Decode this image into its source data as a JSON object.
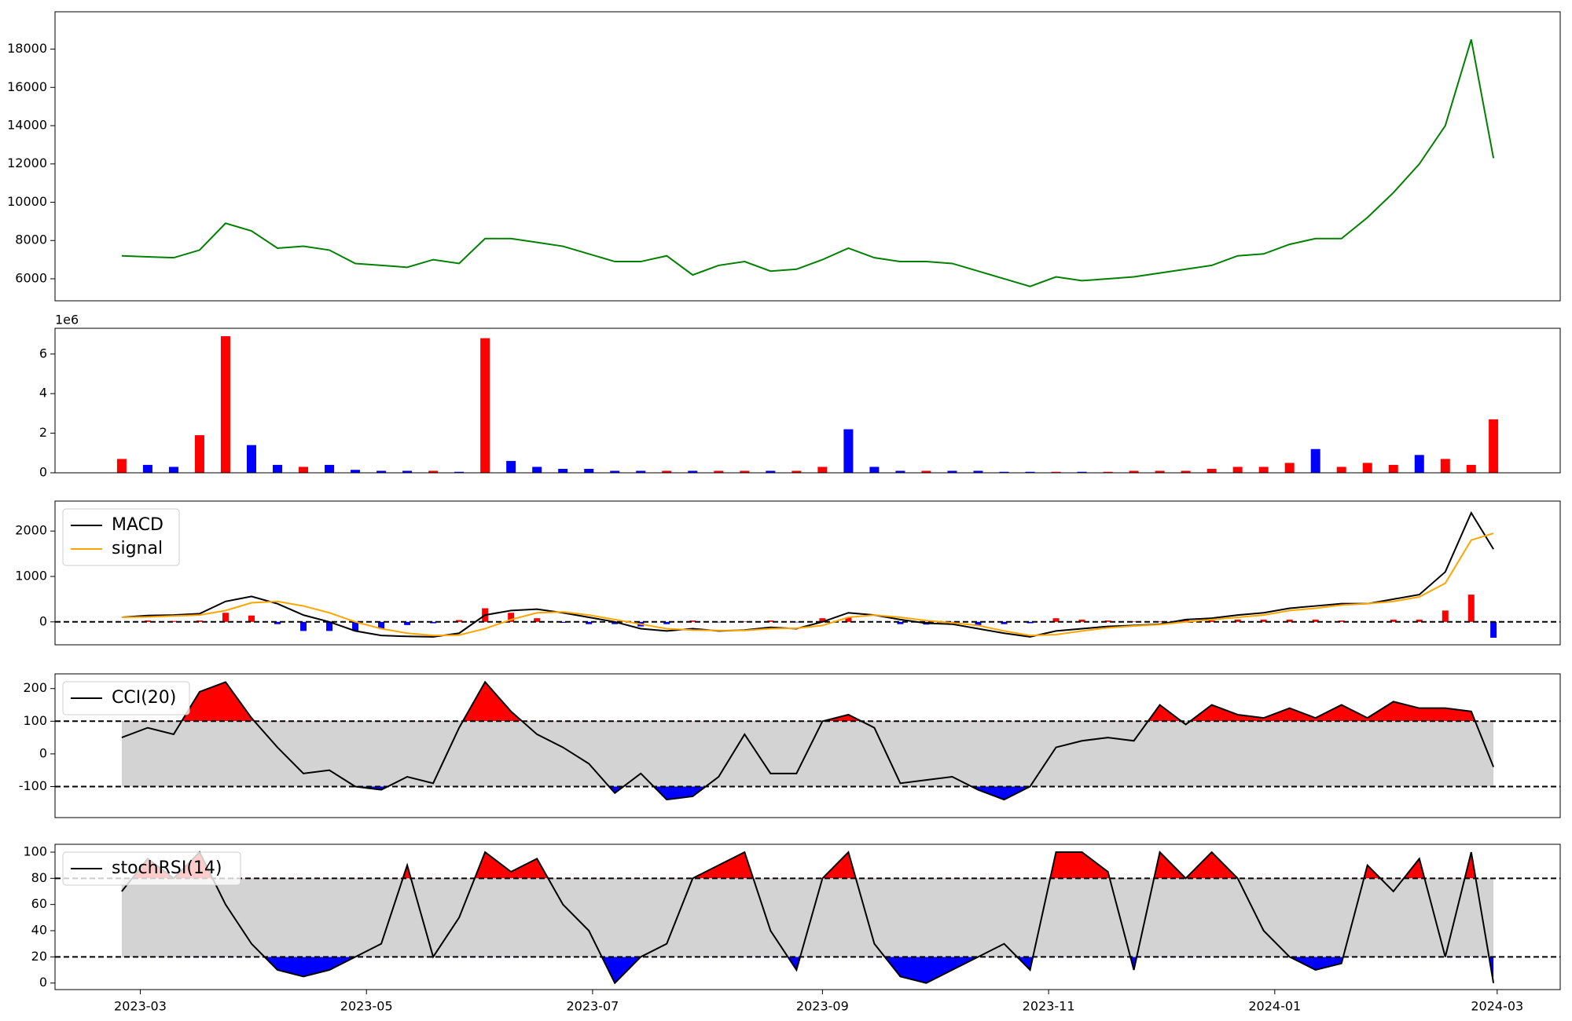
{
  "chart_data": [
    {
      "type": "line",
      "x": [
        "2023-02-24",
        "2023-03-03",
        "2023-03-10",
        "2023-03-17",
        "2023-03-24",
        "2023-03-31",
        "2023-04-07",
        "2023-04-14",
        "2023-04-21",
        "2023-04-28",
        "2023-05-05",
        "2023-05-12",
        "2023-05-19",
        "2023-05-26",
        "2023-06-02",
        "2023-06-09",
        "2023-06-16",
        "2023-06-23",
        "2023-06-30",
        "2023-07-07",
        "2023-07-14",
        "2023-07-21",
        "2023-07-28",
        "2023-08-04",
        "2023-08-11",
        "2023-08-18",
        "2023-08-25",
        "2023-09-01",
        "2023-09-08",
        "2023-09-15",
        "2023-09-22",
        "2023-09-29",
        "2023-10-06",
        "2023-10-13",
        "2023-10-20",
        "2023-10-27",
        "2023-11-03",
        "2023-11-10",
        "2023-11-17",
        "2023-11-24",
        "2023-12-01",
        "2023-12-08",
        "2023-12-15",
        "2023-12-22",
        "2023-12-29",
        "2024-01-05",
        "2024-01-12",
        "2024-01-19",
        "2024-01-26",
        "2024-02-02",
        "2024-02-09",
        "2024-02-16",
        "2024-02-23",
        "2024-02-29"
      ],
      "xlim": [
        "2023-02-06",
        "2024-03-18"
      ],
      "series": [
        {
          "color": "green",
          "values": [
            7200,
            7150,
            7100,
            7500,
            8900,
            8500,
            7600,
            7700,
            7500,
            6800,
            6700,
            6600,
            7000,
            6800,
            8100,
            8100,
            7900,
            7700,
            7300,
            6900,
            6900,
            7200,
            6200,
            6700,
            6900,
            6400,
            6500,
            7000,
            7600,
            7100,
            6900,
            6900,
            6800,
            6400,
            6000,
            5600,
            6100,
            5900,
            6000,
            6100,
            6300,
            6500,
            6700,
            7200,
            7300,
            7800,
            8100,
            8100,
            9200,
            10500,
            12000,
            14000,
            18500,
            12300
          ]
        }
      ],
      "ylim": [
        4850,
        19950
      ],
      "yticks": [
        6000,
        8000,
        10000,
        12000,
        14000,
        16000,
        18000
      ]
    },
    {
      "type": "bar",
      "x": [
        "2023-02-24",
        "2023-03-03",
        "2023-03-10",
        "2023-03-17",
        "2023-03-24",
        "2023-03-31",
        "2023-04-07",
        "2023-04-14",
        "2023-04-21",
        "2023-04-28",
        "2023-05-05",
        "2023-05-12",
        "2023-05-19",
        "2023-05-26",
        "2023-06-02",
        "2023-06-09",
        "2023-06-16",
        "2023-06-23",
        "2023-06-30",
        "2023-07-07",
        "2023-07-14",
        "2023-07-21",
        "2023-07-28",
        "2023-08-04",
        "2023-08-11",
        "2023-08-18",
        "2023-08-25",
        "2023-09-01",
        "2023-09-08",
        "2023-09-15",
        "2023-09-22",
        "2023-09-29",
        "2023-10-06",
        "2023-10-13",
        "2023-10-20",
        "2023-10-27",
        "2023-11-03",
        "2023-11-10",
        "2023-11-17",
        "2023-11-24",
        "2023-12-01",
        "2023-12-08",
        "2023-12-15",
        "2023-12-22",
        "2023-12-29",
        "2024-01-05",
        "2024-01-12",
        "2024-01-19",
        "2024-01-26",
        "2024-02-02",
        "2024-02-09",
        "2024-02-16",
        "2024-02-23",
        "2024-02-29"
      ],
      "xlim": [
        "2023-02-06",
        "2024-03-18"
      ],
      "values": [
        0.7,
        0.4,
        0.3,
        1.9,
        6.9,
        1.4,
        0.4,
        0.3,
        0.4,
        0.15,
        0.1,
        0.1,
        0.1,
        0.05,
        6.8,
        0.6,
        0.3,
        0.2,
        0.2,
        0.1,
        0.1,
        0.1,
        0.1,
        0.1,
        0.1,
        0.1,
        0.1,
        0.3,
        2.2,
        0.3,
        0.1,
        0.1,
        0.1,
        0.1,
        0.05,
        0.05,
        0.05,
        0.05,
        0.05,
        0.1,
        0.1,
        0.1,
        0.2,
        0.3,
        0.3,
        0.5,
        1.2,
        0.3,
        0.5,
        0.4,
        0.9,
        0.7,
        0.4,
        2.7
      ],
      "colors": [
        "red",
        "blue",
        "blue",
        "red",
        "red",
        "blue",
        "blue",
        "red",
        "blue",
        "blue",
        "blue",
        "blue",
        "red",
        "blue",
        "red",
        "blue",
        "blue",
        "blue",
        "blue",
        "blue",
        "blue",
        "red",
        "blue",
        "red",
        "red",
        "blue",
        "red",
        "red",
        "blue",
        "blue",
        "blue",
        "red",
        "blue",
        "blue",
        "blue",
        "blue",
        "red",
        "blue",
        "red",
        "red",
        "red",
        "red",
        "red",
        "red",
        "red",
        "red",
        "blue",
        "red",
        "red",
        "red",
        "blue",
        "red",
        "red",
        "red"
      ],
      "offset_label": "1e6",
      "ylim": [
        0,
        7.3
      ],
      "yticks": [
        0,
        2,
        4,
        6
      ]
    },
    {
      "type": "line",
      "x": [
        "2023-02-24",
        "2023-03-03",
        "2023-03-10",
        "2023-03-17",
        "2023-03-24",
        "2023-03-31",
        "2023-04-07",
        "2023-04-14",
        "2023-04-21",
        "2023-04-28",
        "2023-05-05",
        "2023-05-12",
        "2023-05-19",
        "2023-05-26",
        "2023-06-02",
        "2023-06-09",
        "2023-06-16",
        "2023-06-23",
        "2023-06-30",
        "2023-07-07",
        "2023-07-14",
        "2023-07-21",
        "2023-07-28",
        "2023-08-04",
        "2023-08-11",
        "2023-08-18",
        "2023-08-25",
        "2023-09-01",
        "2023-09-08",
        "2023-09-15",
        "2023-09-22",
        "2023-09-29",
        "2023-10-06",
        "2023-10-13",
        "2023-10-20",
        "2023-10-27",
        "2023-11-03",
        "2023-11-10",
        "2023-11-17",
        "2023-11-24",
        "2023-12-01",
        "2023-12-08",
        "2023-12-15",
        "2023-12-22",
        "2023-12-29",
        "2024-01-05",
        "2024-01-12",
        "2024-01-19",
        "2024-01-26",
        "2024-02-02",
        "2024-02-09",
        "2024-02-16",
        "2024-02-23",
        "2024-02-29"
      ],
      "xlim": [
        "2023-02-06",
        "2024-03-18"
      ],
      "histogram": {
        "positive_color": "red",
        "negative_color": "blue",
        "values": [
          0,
          30,
          20,
          30,
          200,
          140,
          -50,
          -200,
          -200,
          -200,
          -150,
          -70,
          -30,
          40,
          300,
          200,
          80,
          -20,
          -50,
          -50,
          -100,
          -50,
          30,
          -10,
          10,
          30,
          -10,
          80,
          100,
          0,
          -50,
          -60,
          -30,
          -70,
          -50,
          -30,
          80,
          50,
          30,
          10,
          10,
          50,
          30,
          50,
          50,
          50,
          50,
          30,
          0,
          50,
          50,
          250,
          600,
          -350
        ]
      },
      "series": [
        {
          "name": "MACD",
          "color": "black",
          "values": [
            100,
            140,
            150,
            180,
            450,
            560,
            400,
            150,
            0,
            -200,
            -300,
            -320,
            -330,
            -250,
            150,
            250,
            280,
            200,
            100,
            0,
            -150,
            -200,
            -150,
            -200,
            -180,
            -120,
            -150,
            0,
            200,
            150,
            50,
            -30,
            -50,
            -150,
            -250,
            -330,
            -200,
            -150,
            -100,
            -80,
            -50,
            50,
            80,
            150,
            200,
            300,
            350,
            400,
            400,
            500,
            600,
            1100,
            2400,
            1600
          ]
        },
        {
          "name": "signal",
          "color": "orange",
          "values": [
            100,
            110,
            130,
            150,
            250,
            420,
            450,
            350,
            200,
            0,
            -150,
            -250,
            -300,
            -290,
            -150,
            50,
            200,
            220,
            150,
            50,
            -50,
            -150,
            -180,
            -190,
            -190,
            -150,
            -140,
            -80,
            100,
            150,
            100,
            30,
            -20,
            -80,
            -200,
            -300,
            -280,
            -200,
            -130,
            -90,
            -60,
            0,
            50,
            100,
            150,
            250,
            300,
            370,
            400,
            450,
            550,
            850,
            1800,
            1950
          ]
        }
      ],
      "hlines": [
        0
      ],
      "legend": "upper left",
      "ylim": [
        -505,
        2660
      ],
      "yticks": [
        0,
        1000,
        2000
      ]
    },
    {
      "type": "line",
      "x": [
        "2023-02-24",
        "2023-03-03",
        "2023-03-10",
        "2023-03-17",
        "2023-03-24",
        "2023-03-31",
        "2023-04-07",
        "2023-04-14",
        "2023-04-21",
        "2023-04-28",
        "2023-05-05",
        "2023-05-12",
        "2023-05-19",
        "2023-05-26",
        "2023-06-02",
        "2023-06-09",
        "2023-06-16",
        "2023-06-23",
        "2023-06-30",
        "2023-07-07",
        "2023-07-14",
        "2023-07-21",
        "2023-07-28",
        "2023-08-04",
        "2023-08-11",
        "2023-08-18",
        "2023-08-25",
        "2023-09-01",
        "2023-09-08",
        "2023-09-15",
        "2023-09-22",
        "2023-09-29",
        "2023-10-06",
        "2023-10-13",
        "2023-10-20",
        "2023-10-27",
        "2023-11-03",
        "2023-11-10",
        "2023-11-17",
        "2023-11-24",
        "2023-12-01",
        "2023-12-08",
        "2023-12-15",
        "2023-12-22",
        "2023-12-29",
        "2024-01-05",
        "2024-01-12",
        "2024-01-19",
        "2024-01-26",
        "2024-02-02",
        "2024-02-09",
        "2024-02-16",
        "2024-02-23",
        "2024-02-29"
      ],
      "xlim": [
        "2023-02-06",
        "2024-03-18"
      ],
      "series": [
        {
          "name": "CCI(20)",
          "color": "black",
          "values": [
            50,
            80,
            60,
            190,
            220,
            110,
            20,
            -60,
            -50,
            -100,
            -110,
            -70,
            -90,
            80,
            220,
            130,
            60,
            20,
            -30,
            -120,
            -60,
            -140,
            -130,
            -70,
            60,
            -60,
            -60,
            100,
            120,
            80,
            -90,
            -80,
            -70,
            -110,
            -140,
            -100,
            20,
            40,
            50,
            40,
            150,
            90,
            150,
            120,
            110,
            140,
            110,
            150,
            110,
            160,
            140,
            140,
            130,
            -40
          ]
        }
      ],
      "hlines": [
        100,
        -100
      ],
      "band": {
        "levels": [
          -100,
          100
        ],
        "color": "lightgray",
        "upper_color": "red",
        "lower_color": "blue"
      },
      "legend": "upper left",
      "ylim": [
        -195,
        245
      ],
      "yticks": [
        -100,
        0,
        100,
        200
      ]
    },
    {
      "type": "line",
      "x": [
        "2023-02-24",
        "2023-03-03",
        "2023-03-10",
        "2023-03-17",
        "2023-03-24",
        "2023-03-31",
        "2023-04-07",
        "2023-04-14",
        "2023-04-21",
        "2023-04-28",
        "2023-05-05",
        "2023-05-12",
        "2023-05-19",
        "2023-05-26",
        "2023-06-02",
        "2023-06-09",
        "2023-06-16",
        "2023-06-23",
        "2023-06-30",
        "2023-07-07",
        "2023-07-14",
        "2023-07-21",
        "2023-07-28",
        "2023-08-04",
        "2023-08-11",
        "2023-08-18",
        "2023-08-25",
        "2023-09-01",
        "2023-09-08",
        "2023-09-15",
        "2023-09-22",
        "2023-09-29",
        "2023-10-06",
        "2023-10-13",
        "2023-10-20",
        "2023-10-27",
        "2023-11-03",
        "2023-11-10",
        "2023-11-17",
        "2023-11-24",
        "2023-12-01",
        "2023-12-08",
        "2023-12-15",
        "2023-12-22",
        "2023-12-29",
        "2024-01-05",
        "2024-01-12",
        "2024-01-19",
        "2024-01-26",
        "2024-02-02",
        "2024-02-09",
        "2024-02-16",
        "2024-02-23",
        "2024-02-29"
      ],
      "xlim": [
        "2023-02-06",
        "2024-03-18"
      ],
      "series": [
        {
          "name": "stochRSI(14)",
          "color": "black",
          "values": [
            70,
            95,
            80,
            100,
            60,
            30,
            10,
            5,
            10,
            20,
            30,
            90,
            20,
            50,
            100,
            85,
            95,
            60,
            40,
            0,
            20,
            30,
            80,
            90,
            100,
            40,
            10,
            80,
            100,
            30,
            5,
            0,
            10,
            20,
            30,
            10,
            100,
            100,
            85,
            10,
            100,
            80,
            100,
            80,
            40,
            20,
            10,
            15,
            90,
            70,
            95,
            20,
            100,
            0
          ]
        }
      ],
      "hlines": [
        80,
        20
      ],
      "band": {
        "levels": [
          20,
          80
        ],
        "color": "lightgray",
        "upper_color": "red",
        "lower_color": "blue"
      },
      "legend": "upper left",
      "ylim": [
        -5,
        106
      ],
      "yticks": [
        0,
        20,
        40,
        60,
        80,
        100
      ],
      "xticks": [
        {
          "value": "2023-03-01",
          "label": "2023-03"
        },
        {
          "value": "2023-05-01",
          "label": "2023-05"
        },
        {
          "value": "2023-07-01",
          "label": "2023-07"
        },
        {
          "value": "2023-09-01",
          "label": "2023-09"
        },
        {
          "value": "2023-11-01",
          "label": "2023-11"
        },
        {
          "value": "2024-01-01",
          "label": "2024-01"
        },
        {
          "value": "2024-03-01",
          "label": "2024-03"
        }
      ]
    }
  ]
}
